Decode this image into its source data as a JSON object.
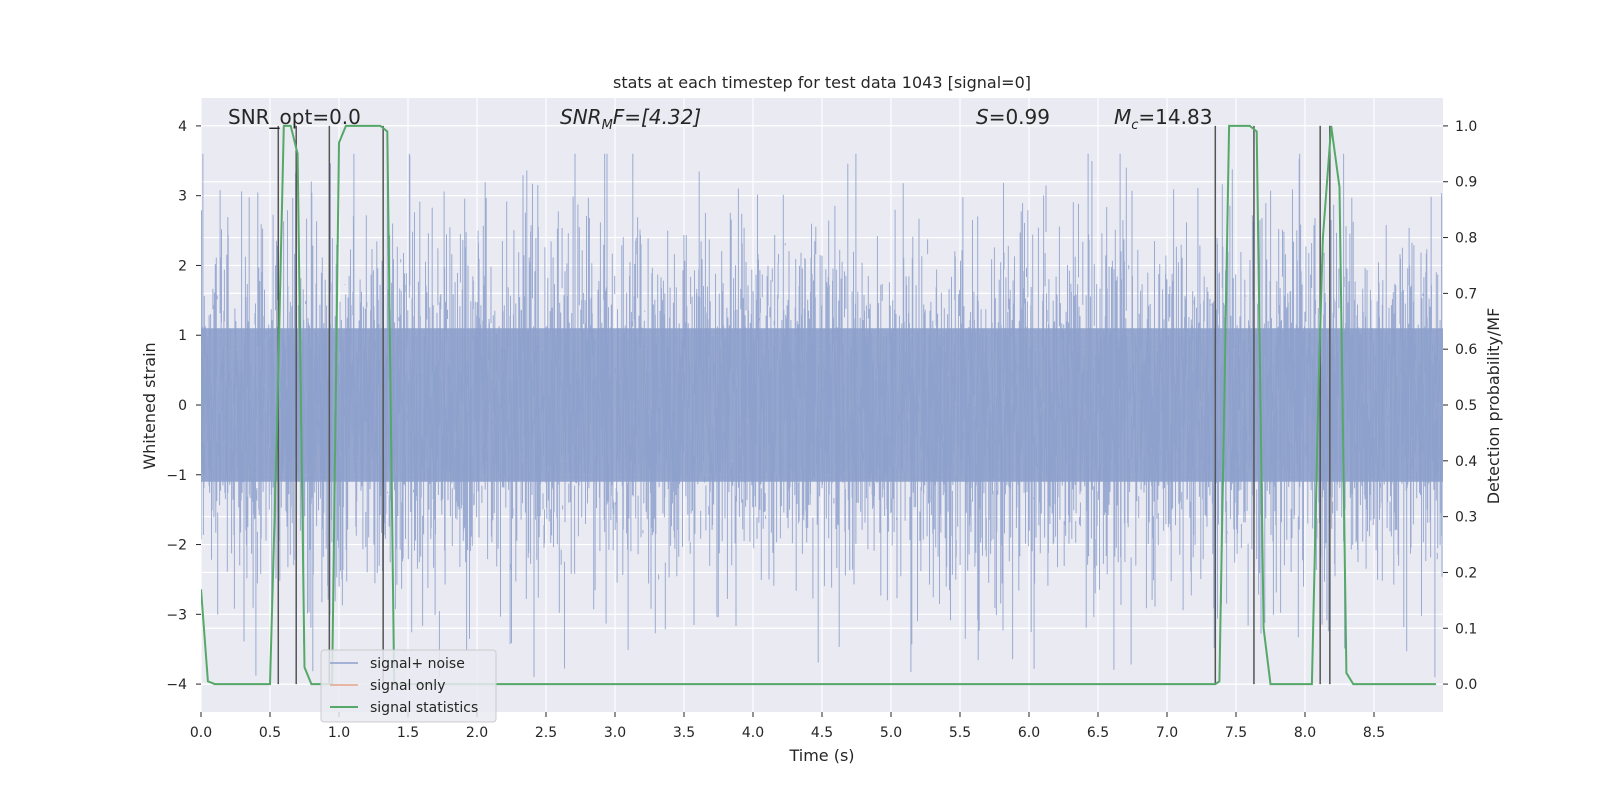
{
  "chart_data": {
    "type": "line",
    "title": "stats at each timestep for test data 1043 [signal=0]",
    "xlabel": "Time (s)",
    "ylabel": "Whitened strain",
    "ylabel_right": "Detection probability/MF",
    "xlim": [
      0.0,
      9.0
    ],
    "ylim": [
      -4.4,
      4.4
    ],
    "ylim_right": [
      -0.05,
      1.05
    ],
    "x_ticks": [
      "0.0",
      "0.5",
      "1.0",
      "1.5",
      "2.0",
      "2.5",
      "3.0",
      "3.5",
      "4.0",
      "4.5",
      "5.0",
      "5.5",
      "6.0",
      "6.5",
      "7.0",
      "7.5",
      "8.0",
      "8.5"
    ],
    "y_ticks": [
      "4",
      "3",
      "2",
      "1",
      "0",
      "−1",
      "−2",
      "−3",
      "−4"
    ],
    "y_ticks_right": [
      "1.0",
      "0.9",
      "0.8",
      "0.7",
      "0.6",
      "0.5",
      "0.4",
      "0.3",
      "0.2",
      "0.1",
      "0.0"
    ],
    "grid": true,
    "background": "#eaeaf2",
    "annotations": {
      "snr_opt": "SNR_opt=0.0",
      "snr_mf_sym": "SNR",
      "snr_mf_sub": "M",
      "snr_mf_rest": "F=[4.32]",
      "s_sym": "S",
      "s_rest": "=0.99",
      "mc_sym": "M",
      "mc_sub": "c",
      "mc_rest": "=14.83"
    },
    "legend": {
      "placement": "lower-left",
      "entries": [
        {
          "label": "signal+ noise",
          "color": "#8da0cb"
        },
        {
          "label": "signal only",
          "color": "#e5a38a"
        },
        {
          "label": "signal statistics",
          "color": "#55a868"
        }
      ]
    },
    "series": [
      {
        "name": "signal+ noise",
        "color": "#8da0cb",
        "description_level": "whitened noise, approx std 0.8, peaks up to about ±3.5",
        "envelope_sigma": 0.8
      },
      {
        "name": "signal statistics",
        "color": "#55a868",
        "axis": "right",
        "x": [
          0.0,
          0.05,
          0.1,
          0.5,
          0.55,
          0.6,
          0.65,
          0.7,
          0.75,
          0.8,
          0.9,
          0.95,
          1.0,
          1.05,
          1.1,
          1.3,
          1.35,
          1.4,
          1.45,
          7.35,
          7.38,
          7.45,
          7.6,
          7.65,
          7.7,
          7.75,
          8.05,
          8.1,
          8.13,
          8.19,
          8.25,
          8.3,
          8.35,
          8.95
        ],
        "y": [
          0.17,
          0.005,
          0.0,
          0.0,
          0.45,
          1.0,
          1.0,
          0.95,
          0.03,
          0.0,
          0.0,
          0.0,
          0.97,
          1.0,
          1.0,
          1.0,
          0.99,
          0.0,
          0.0,
          0.0,
          0.005,
          1.0,
          1.0,
          0.99,
          0.1,
          0.0,
          0.0,
          0.55,
          0.8,
          1.0,
          0.89,
          0.02,
          0.0,
          0.0
        ]
      }
    ],
    "vertical_markers_x": [
      0.56,
      0.69,
      0.93,
      1.32,
      7.35,
      7.63,
      8.11,
      8.18
    ]
  }
}
